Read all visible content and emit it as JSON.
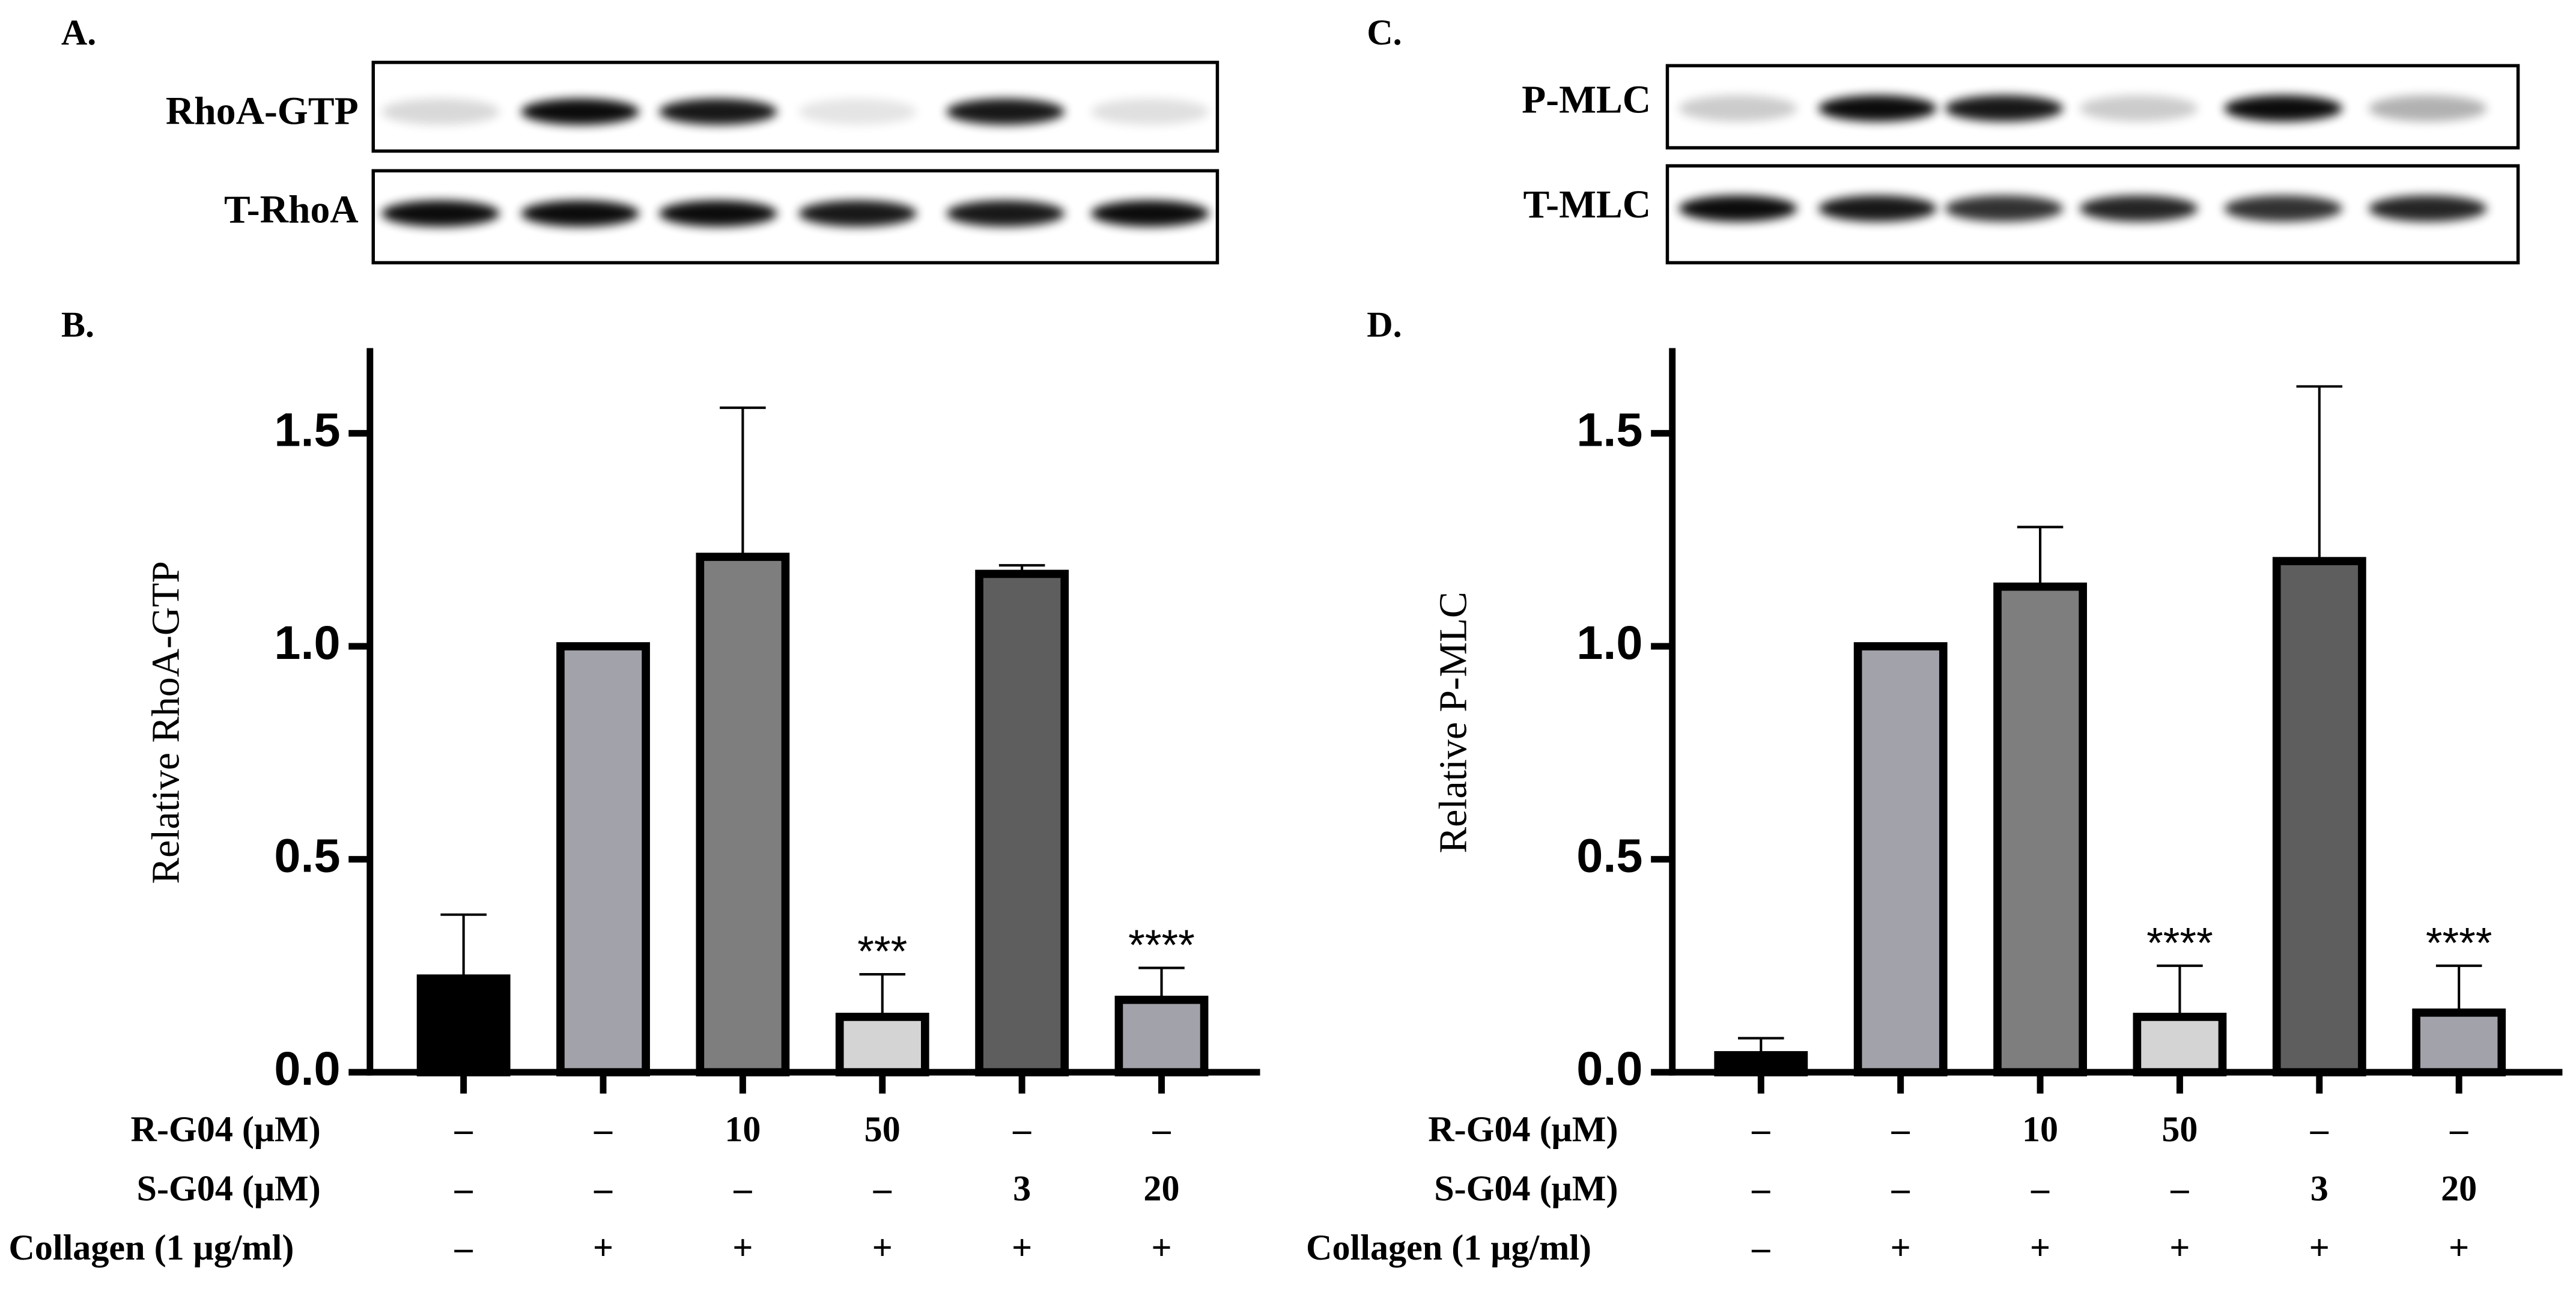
{
  "blots": [
    {
      "panel_label": "A.",
      "rows": [
        "RhoA-GTP",
        "T-RhoA"
      ]
    },
    {
      "panel_label": "C.",
      "rows": [
        "P-MLC",
        "T-MLC"
      ]
    }
  ],
  "chart_data": [
    {
      "type": "bar",
      "panel_label": "B.",
      "y_label": "Relative RhoA-GTP",
      "categories": [
        null,
        null,
        null,
        null,
        null,
        null
      ],
      "values": [
        0.22,
        1.0,
        1.21,
        0.13,
        1.17,
        0.17
      ],
      "errors": [
        0.15,
        0,
        0.35,
        0.1,
        0.02,
        0.075
      ],
      "colors": [
        "#000000",
        "#a2a2aa",
        "#7e7e7e",
        "#d4d4d4",
        "#5e5e5e",
        "#a2a2aa"
      ],
      "significance": [
        null,
        null,
        null,
        "***",
        null,
        "****"
      ],
      "ylim": [
        0,
        1.7
      ],
      "yticks": [
        {
          "value": 0,
          "label": "0.0"
        },
        0.5,
        {
          "value": 1,
          "label": "1.0"
        },
        1.5
      ],
      "treatments": [
        {
          "label": "R-G04 (μM)",
          "values": [
            "–",
            "–",
            "10",
            "50",
            "–",
            "–"
          ]
        },
        {
          "label": "S-G04 (μM)",
          "values": [
            "–",
            "–",
            "–",
            "–",
            "3",
            "20"
          ]
        },
        {
          "label": "Collagen (1 μg/ml)",
          "values": [
            "–",
            "+",
            "+",
            "+",
            "+",
            "+"
          ]
        }
      ]
    },
    {
      "type": "bar",
      "panel_label": "D.",
      "y_label": "Relative P-MLC",
      "categories": [
        null,
        null,
        null,
        null,
        null,
        null
      ],
      "values": [
        0.04,
        1.0,
        1.14,
        0.13,
        1.2,
        0.14
      ],
      "errors": [
        0.04,
        0,
        0.14,
        0.12,
        0.41,
        0.11
      ],
      "colors": [
        "#000000",
        "#a2a2aa",
        "#7e7e7e",
        "#d4d4d4",
        "#5e5e5e",
        "#a2a2aa"
      ],
      "significance": [
        null,
        null,
        null,
        "****",
        null,
        "****"
      ],
      "ylim": [
        0,
        1.7
      ],
      "yticks": [
        {
          "value": 0,
          "label": "0.0"
        },
        0.5,
        {
          "value": 1,
          "label": "1.0"
        },
        1.5
      ],
      "treatments": [
        {
          "label": "R-G04 (μM)",
          "values": [
            "–",
            "–",
            "10",
            "50",
            "–",
            "–"
          ]
        },
        {
          "label": "S-G04 (μM)",
          "values": [
            "–",
            "–",
            "–",
            "–",
            "3",
            "20"
          ]
        },
        {
          "label": "Collagen (1 μg/ml)",
          "values": [
            "–",
            "+",
            "+",
            "+",
            "+",
            "+"
          ]
        }
      ]
    }
  ]
}
